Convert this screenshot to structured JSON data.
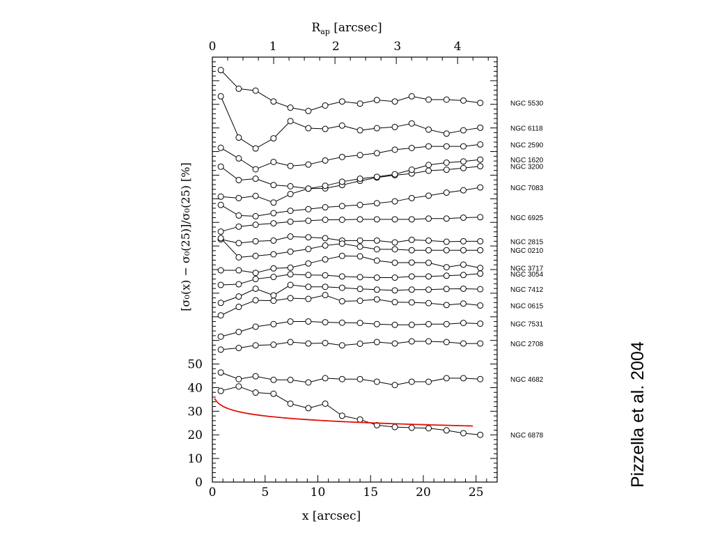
{
  "credit": "Pizzella et al. 2004",
  "chart_data": {
    "type": "line",
    "xlabel": "x [arcsec]",
    "ylabel": "[σ₀(x) − σ₀(25)]/σ₀(25) [%]",
    "top_axis_label": "R",
    "top_axis_label_sub": "ap",
    "top_axis_label_unit": " [arcsec]",
    "xlim": [
      0,
      27
    ],
    "ylim": [
      0,
      180
    ],
    "x_ticks": [
      "0",
      "5",
      "10",
      "15",
      "20",
      "25"
    ],
    "x_tick_values": [
      0,
      5,
      10,
      15,
      20,
      25
    ],
    "top_ticks": [
      "0",
      "1",
      "2",
      "3",
      "4"
    ],
    "top_tick_x_values": [
      0,
      5.75,
      11.7,
      17.55,
      23.25
    ],
    "y_ticks": [
      "0",
      "10",
      "20",
      "30",
      "40",
      "50"
    ],
    "y_tick_values": [
      0,
      10,
      20,
      30,
      40,
      50
    ],
    "colors": {
      "series": "#000000",
      "model": "#e3100b"
    },
    "x": [
      0.8,
      2.5,
      4.1,
      5.8,
      7.4,
      9.1,
      10.7,
      12.3,
      14.0,
      15.6,
      17.3,
      18.9,
      20.5,
      22.2,
      23.8,
      25.4
    ],
    "series": [
      {
        "name": "NGC 5530",
        "values": [
          174.5,
          166.6,
          165.8,
          161.2,
          158.6,
          157.2,
          159.5,
          161.2,
          160.3,
          161.8,
          161.2,
          163.4,
          162.0,
          162.0,
          161.6,
          160.6
        ]
      },
      {
        "name": "NGC 6118",
        "values": [
          163.4,
          145.9,
          141.3,
          145.6,
          152.9,
          149.9,
          149.6,
          151.0,
          149.0,
          149.9,
          150.4,
          151.9,
          149.3,
          147.6,
          149.0,
          150.1
        ]
      },
      {
        "name": "NGC 2590",
        "values": [
          141.6,
          137.1,
          132.5,
          135.6,
          133.9,
          134.5,
          136.2,
          137.7,
          138.5,
          139.3,
          140.8,
          141.5,
          142.2,
          142.2,
          142.2,
          143.0
        ]
      },
      {
        "name": "NGC 3200",
        "values": [
          133.6,
          127.9,
          128.5,
          125.8,
          125.3,
          124.3,
          124.4,
          125.8,
          127.6,
          129.0,
          130.0,
          130.7,
          131.9,
          132.3,
          133.0,
          133.8
        ]
      },
      {
        "name": "NGC 1620",
        "values": [
          120.9,
          120.3,
          121.2,
          118.4,
          122.0,
          124.3,
          125.5,
          127.2,
          128.5,
          129.3,
          130.4,
          132.3,
          134.3,
          135.3,
          135.8,
          136.6
        ]
      },
      {
        "name": "NGC 7083",
        "values": [
          117.4,
          112.9,
          112.6,
          113.9,
          114.9,
          115.6,
          116.4,
          116.9,
          117.4,
          118.1,
          118.9,
          120.3,
          121.3,
          122.6,
          123.6,
          124.8
        ]
      },
      {
        "name": "NGC 6925",
        "values": [
          106.1,
          108.2,
          109.0,
          109.6,
          110.3,
          110.7,
          111.1,
          111.1,
          111.3,
          111.3,
          111.3,
          111.3,
          111.6,
          111.6,
          112.0,
          112.2
        ]
      },
      {
        "name": "NGC 2815",
        "values": [
          102.8,
          101.2,
          102.0,
          102.3,
          104.0,
          103.7,
          103.3,
          102.3,
          102.3,
          102.3,
          101.5,
          102.6,
          102.3,
          101.8,
          102.0,
          102.0
        ]
      },
      {
        "name": "NGC 0210",
        "values": [
          103.3,
          95.2,
          95.8,
          96.5,
          97.6,
          98.7,
          100.2,
          101.0,
          99.7,
          98.6,
          98.6,
          98.2,
          98.2,
          98.2,
          98.2,
          98.2
        ]
      },
      {
        "name": "NGC 3717",
        "values": [
          89.7,
          89.7,
          88.6,
          90.5,
          90.8,
          92.6,
          94.3,
          95.8,
          95.6,
          93.8,
          92.9,
          93.0,
          92.9,
          91.0,
          92.1,
          90.7
        ]
      },
      {
        "name": "NGC 3054",
        "values": [
          83.5,
          83.8,
          86.0,
          86.9,
          88.0,
          87.7,
          87.6,
          87.1,
          86.8,
          86.6,
          86.6,
          87.1,
          87.1,
          87.4,
          87.7,
          88.3
        ]
      },
      {
        "name": "NGC 7412",
        "values": [
          75.9,
          78.6,
          81.9,
          79.1,
          83.5,
          82.7,
          82.7,
          82.3,
          81.8,
          81.5,
          81.2,
          81.5,
          81.5,
          81.8,
          81.9,
          81.7
        ]
      },
      {
        "name": "NGC 0615",
        "values": [
          70.6,
          74.2,
          77.0,
          76.8,
          77.9,
          77.6,
          79.2,
          76.6,
          76.8,
          77.4,
          76.2,
          76.1,
          75.8,
          75.0,
          75.6,
          74.8
        ]
      },
      {
        "name": "NGC 7531",
        "values": [
          61.6,
          63.6,
          65.8,
          66.9,
          68.0,
          68.0,
          67.7,
          67.5,
          67.4,
          66.9,
          66.6,
          66.6,
          66.9,
          66.9,
          67.4,
          67.1
        ]
      },
      {
        "name": "NGC 2708",
        "values": [
          56.1,
          56.8,
          57.9,
          58.2,
          59.3,
          58.7,
          58.9,
          57.9,
          58.6,
          59.3,
          58.7,
          59.6,
          59.6,
          59.3,
          58.7,
          58.7
        ]
      },
      {
        "name": "NGC 6878",
        "values": [
          38.6,
          40.5,
          37.9,
          37.4,
          33.2,
          31.3,
          33.2,
          28.1,
          26.5,
          24.1,
          23.3,
          23.0,
          22.8,
          21.9,
          20.7,
          20.0
        ]
      },
      {
        "name": "NGC 4682",
        "values": [
          46.4,
          43.6,
          44.8,
          43.3,
          43.3,
          42.2,
          44.0,
          43.6,
          43.6,
          42.5,
          41.1,
          42.5,
          42.5,
          44.0,
          44.0,
          43.6
        ]
      }
    ]
  }
}
